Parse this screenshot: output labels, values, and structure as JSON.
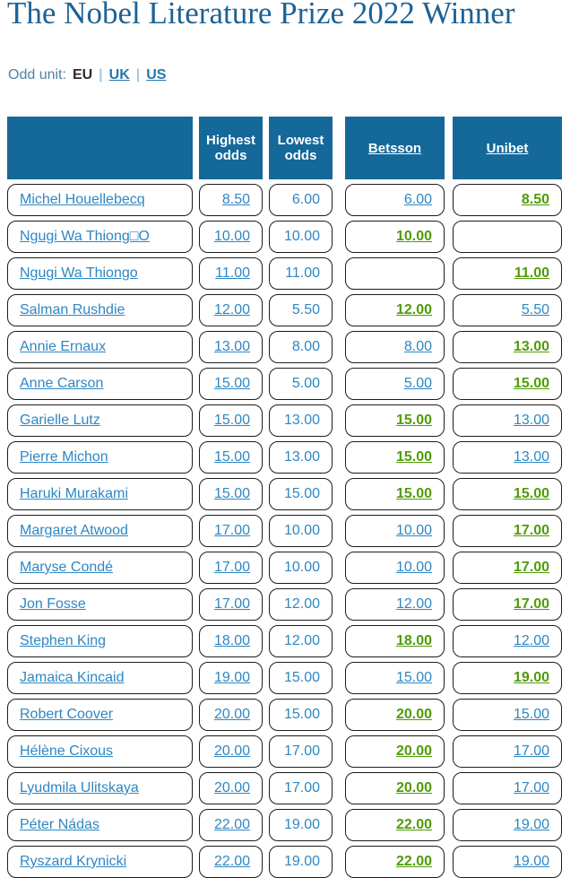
{
  "page": {
    "title": "The Nobel Literature Prize 2022 Winner"
  },
  "odd_unit": {
    "label": "Odd unit:",
    "selected": "EU",
    "separator": "|",
    "link1": "UK",
    "link2": "US"
  },
  "table": {
    "headers": {
      "name": "",
      "highest": "Highest odds",
      "lowest": "Lowest odds",
      "betsson": "Betsson",
      "unibet": "Unibet"
    },
    "rows": [
      {
        "name": "Michel Houellebecq",
        "highest": "8.50",
        "lowest": "6.00",
        "betsson": "6.00",
        "betsson_best": false,
        "unibet": "8.50",
        "unibet_best": true
      },
      {
        "name": "Ngugi Wa Thiong□O",
        "highest": "10.00",
        "lowest": "10.00",
        "betsson": "10.00",
        "betsson_best": true,
        "unibet": "",
        "unibet_best": false
      },
      {
        "name": "Ngugi Wa Thiongo",
        "highest": "11.00",
        "lowest": "11.00",
        "betsson": "",
        "betsson_best": false,
        "unibet": "11.00",
        "unibet_best": true
      },
      {
        "name": "Salman Rushdie",
        "highest": "12.00",
        "lowest": "5.50",
        "betsson": "12.00",
        "betsson_best": true,
        "unibet": "5.50",
        "unibet_best": false
      },
      {
        "name": "Annie Ernaux",
        "highest": "13.00",
        "lowest": "8.00",
        "betsson": "8.00",
        "betsson_best": false,
        "unibet": "13.00",
        "unibet_best": true
      },
      {
        "name": "Anne Carson",
        "highest": "15.00",
        "lowest": "5.00",
        "betsson": "5.00",
        "betsson_best": false,
        "unibet": "15.00",
        "unibet_best": true
      },
      {
        "name": "Garielle Lutz",
        "highest": "15.00",
        "lowest": "13.00",
        "betsson": "15.00",
        "betsson_best": true,
        "unibet": "13.00",
        "unibet_best": false
      },
      {
        "name": "Pierre Michon",
        "highest": "15.00",
        "lowest": "13.00",
        "betsson": "15.00",
        "betsson_best": true,
        "unibet": "13.00",
        "unibet_best": false
      },
      {
        "name": "Haruki Murakami",
        "highest": "15.00",
        "lowest": "15.00",
        "betsson": "15.00",
        "betsson_best": true,
        "unibet": "15.00",
        "unibet_best": true
      },
      {
        "name": "Margaret Atwood",
        "highest": "17.00",
        "lowest": "10.00",
        "betsson": "10.00",
        "betsson_best": false,
        "unibet": "17.00",
        "unibet_best": true
      },
      {
        "name": "Maryse Condé",
        "highest": "17.00",
        "lowest": "10.00",
        "betsson": "10.00",
        "betsson_best": false,
        "unibet": "17.00",
        "unibet_best": true
      },
      {
        "name": "Jon Fosse",
        "highest": "17.00",
        "lowest": "12.00",
        "betsson": "12.00",
        "betsson_best": false,
        "unibet": "17.00",
        "unibet_best": true
      },
      {
        "name": "Stephen King",
        "highest": "18.00",
        "lowest": "12.00",
        "betsson": "18.00",
        "betsson_best": true,
        "unibet": "12.00",
        "unibet_best": false
      },
      {
        "name": "Jamaica Kincaid",
        "highest": "19.00",
        "lowest": "15.00",
        "betsson": "15.00",
        "betsson_best": false,
        "unibet": "19.00",
        "unibet_best": true
      },
      {
        "name": "Robert Coover",
        "highest": "20.00",
        "lowest": "15.00",
        "betsson": "20.00",
        "betsson_best": true,
        "unibet": "15.00",
        "unibet_best": false
      },
      {
        "name": "Hélène Cixous",
        "highest": "20.00",
        "lowest": "17.00",
        "betsson": "20.00",
        "betsson_best": true,
        "unibet": "17.00",
        "unibet_best": false
      },
      {
        "name": "Lyudmila Ulitskaya",
        "highest": "20.00",
        "lowest": "17.00",
        "betsson": "20.00",
        "betsson_best": true,
        "unibet": "17.00",
        "unibet_best": false
      },
      {
        "name": "Péter Nádas",
        "highest": "22.00",
        "lowest": "19.00",
        "betsson": "22.00",
        "betsson_best": true,
        "unibet": "19.00",
        "unibet_best": false
      },
      {
        "name": "Ryszard Krynicki",
        "highest": "22.00",
        "lowest": "19.00",
        "betsson": "22.00",
        "betsson_best": true,
        "unibet": "19.00",
        "unibet_best": false
      }
    ]
  },
  "colors": {
    "header_background": "#15689a",
    "title_blue": "#1d6295",
    "link_blue": "#2e87c3",
    "best_odds_green": "#4f9c06",
    "odd_unit_label_blue": "#4a83a8"
  }
}
